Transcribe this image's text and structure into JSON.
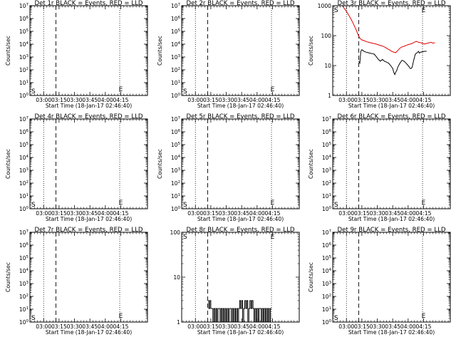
{
  "colors": {
    "events": "#000000",
    "lld": "#e00000",
    "background": "#ffffff",
    "axes": "#000000"
  },
  "common": {
    "xlabel": "Start Time (18-Jan-17 02:46:40)",
    "ylabel": "Counts/sec",
    "x_ticks": [
      "03:00",
      "03:15",
      "03:30",
      "03:45",
      "04:00",
      "04:15"
    ],
    "x_tick_minutes": [
      180,
      195,
      210,
      225,
      240,
      255
    ],
    "xlim_minutes": [
      166.67,
      281
    ],
    "dotted_lines_minutes": [
      180,
      254,
      281
    ],
    "dashed_line_minutes": [
      192
    ],
    "marker_start": "S",
    "marker_end": "E",
    "marker_start_minutes": 170,
    "marker_end_minutes": 255
  },
  "chart_data": [
    {
      "type": "line",
      "title": "Det 1r BLACK = Events, RED = LLD",
      "scale": "log",
      "ylim": [
        1,
        10000000
      ],
      "y_tick_labels": [
        "10^0",
        "10^1",
        "10^2",
        "10^3",
        "10^4",
        "10^5",
        "10^6",
        "10^7"
      ],
      "show_ylabel": true,
      "series": []
    },
    {
      "type": "line",
      "title": "Det 2r BLACK = Events, RED = LLD",
      "scale": "log",
      "ylim": [
        1,
        10000000
      ],
      "y_tick_labels": [
        "10^0",
        "10^1",
        "10^2",
        "10^3",
        "10^4",
        "10^5",
        "10^6",
        "10^7"
      ],
      "show_ylabel": true,
      "series": []
    },
    {
      "type": "line",
      "title": "Det 3r BLACK = Events, RED = LLD",
      "scale": "log",
      "ylim": [
        1,
        1000
      ],
      "y_tick_labels": [
        "1",
        "10",
        "100",
        "1000"
      ],
      "show_ylabel": true,
      "series": [
        {
          "name": "LLD",
          "color": "#e00000",
          "x": [
            176,
            178,
            180,
            182,
            184,
            186,
            188,
            189,
            190,
            191,
            192,
            193,
            195,
            197,
            200,
            203,
            206,
            209,
            212,
            215,
            218,
            220,
            222,
            224,
            226,
            228,
            230,
            232,
            234,
            236,
            238,
            240,
            242,
            244,
            246,
            248,
            250,
            252,
            254,
            256,
            258,
            260,
            262,
            264,
            266
          ],
          "y": [
            1000,
            800,
            650,
            500,
            380,
            280,
            200,
            170,
            140,
            115,
            95,
            82,
            72,
            68,
            62,
            58,
            55,
            52,
            48,
            45,
            40,
            36,
            33,
            30,
            28,
            27,
            32,
            38,
            42,
            44,
            47,
            50,
            52,
            55,
            60,
            64,
            60,
            58,
            55,
            52,
            55,
            57,
            60,
            56,
            58
          ]
        },
        {
          "name": "Events",
          "color": "#000000",
          "x": [
            192,
            193,
            194,
            195,
            196,
            197,
            199,
            201,
            203,
            205,
            207,
            209,
            211,
            213,
            215,
            217,
            219,
            221,
            223,
            225,
            226,
            227,
            228,
            229,
            230,
            232,
            234,
            236,
            238,
            240,
            241,
            242,
            243,
            244,
            245,
            246,
            247,
            248,
            249,
            250,
            251,
            252,
            254,
            256,
            258
          ],
          "y": [
            14,
            12,
            30,
            34,
            32,
            30,
            28,
            27,
            26,
            25,
            24,
            20,
            16,
            14,
            16,
            14,
            13,
            12,
            10,
            8,
            6,
            5,
            6,
            7,
            9,
            12,
            15,
            14,
            12,
            10,
            9,
            8,
            8,
            9,
            13,
            18,
            24,
            26,
            27,
            30,
            26,
            28,
            29,
            30,
            30
          ]
        }
      ]
    },
    {
      "type": "line",
      "title": "Det 4r BLACK = Events, RED = LLD",
      "scale": "log",
      "ylim": [
        1,
        10000000
      ],
      "y_tick_labels": [
        "10^0",
        "10^1",
        "10^2",
        "10^3",
        "10^4",
        "10^5",
        "10^6",
        "10^7"
      ],
      "show_ylabel": true,
      "series": []
    },
    {
      "type": "line",
      "title": "Det 5r BLACK = Events, RED = LLD",
      "scale": "log",
      "ylim": [
        1,
        10000000
      ],
      "y_tick_labels": [
        "10^0",
        "10^1",
        "10^2",
        "10^3",
        "10^4",
        "10^5",
        "10^6",
        "10^7"
      ],
      "show_ylabel": true,
      "series": []
    },
    {
      "type": "line",
      "title": "Det 6r BLACK = Events, RED = LLD",
      "scale": "log",
      "ylim": [
        1,
        10000000
      ],
      "y_tick_labels": [
        "10^0",
        "10^1",
        "10^2",
        "10^3",
        "10^4",
        "10^5",
        "10^6",
        "10^7"
      ],
      "show_ylabel": true,
      "series": []
    },
    {
      "type": "line",
      "title": "Det 7r BLACK = Events, RED = LLD",
      "scale": "log",
      "ylim": [
        1,
        10000000
      ],
      "y_tick_labels": [
        "10^0",
        "10^1",
        "10^2",
        "10^3",
        "10^4",
        "10^5",
        "10^6",
        "10^7"
      ],
      "show_ylabel": true,
      "series": []
    },
    {
      "type": "line",
      "title": "Det 8r BLACK = Events, RED = LLD",
      "scale": "log",
      "ylim": [
        1,
        100
      ],
      "y_tick_labels": [
        "1",
        "10",
        "100"
      ],
      "show_ylabel": false,
      "series": [
        {
          "name": "Events",
          "color": "#000000",
          "step": true,
          "x": [
            192,
            193,
            194,
            195,
            197,
            198,
            199,
            200,
            201,
            202,
            203,
            204,
            205,
            206,
            207,
            208,
            209,
            210,
            211,
            212,
            213,
            214,
            215,
            216,
            217,
            218,
            219,
            220,
            221,
            222,
            223,
            224,
            225,
            226,
            227,
            228,
            229,
            230,
            231,
            232,
            233,
            234,
            235,
            236,
            237,
            238,
            239,
            240,
            241,
            242,
            243,
            244,
            245,
            246,
            247,
            248,
            249,
            250,
            251,
            252,
            253,
            254
          ],
          "y": [
            3,
            2,
            3,
            2,
            1,
            2,
            1,
            2,
            1,
            2,
            2,
            1,
            2,
            1,
            2,
            1,
            2,
            1,
            2,
            1,
            2,
            2,
            1,
            2,
            1,
            2,
            1,
            2,
            1,
            2,
            3,
            2,
            3,
            1,
            2,
            3,
            2,
            3,
            1,
            2,
            3,
            2,
            3,
            2,
            1,
            2,
            1,
            2,
            1,
            2,
            2,
            1,
            2,
            1,
            2,
            1,
            2,
            1,
            2,
            1,
            2,
            2
          ]
        }
      ]
    },
    {
      "type": "line",
      "title": "Det 9r BLACK = Events, RED = LLD",
      "scale": "log",
      "ylim": [
        1,
        10000000
      ],
      "y_tick_labels": [
        "10^0",
        "10^1",
        "10^2",
        "10^3",
        "10^4",
        "10^5",
        "10^6",
        "10^7"
      ],
      "show_ylabel": true,
      "series": []
    }
  ]
}
